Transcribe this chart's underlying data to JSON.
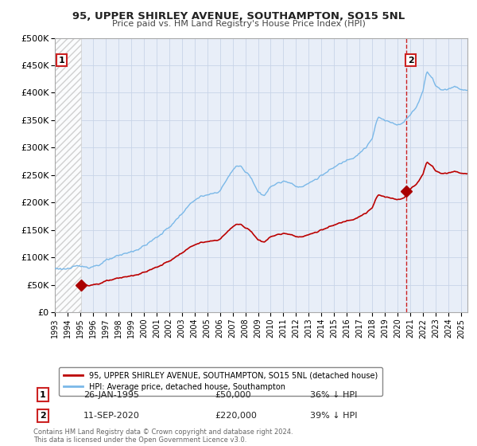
{
  "title": "95, UPPER SHIRLEY AVENUE, SOUTHAMPTON, SO15 5NL",
  "subtitle": "Price paid vs. HM Land Registry's House Price Index (HPI)",
  "ylim": [
    0,
    500000
  ],
  "yticks": [
    0,
    50000,
    100000,
    150000,
    200000,
    250000,
    300000,
    350000,
    400000,
    450000,
    500000
  ],
  "ytick_labels": [
    "£0",
    "£50K",
    "£100K",
    "£150K",
    "£200K",
    "£250K",
    "£300K",
    "£350K",
    "£400K",
    "£450K",
    "£500K"
  ],
  "xlim_start": 1993.0,
  "xlim_end": 2025.5,
  "hpi_color": "#7ab8e8",
  "price_color": "#bb0000",
  "marker_color": "#aa0000",
  "hatch_color": "#c8c8c8",
  "grid_color": "#c8d4e8",
  "sale1_x": 1995.07,
  "sale1_y": 50000,
  "sale2_x": 2020.7,
  "sale2_y": 220000,
  "vline_color": "#cc2222",
  "annotation_box_color": "#cc2222",
  "legend_label_price": "95, UPPER SHIRLEY AVENUE, SOUTHAMPTON, SO15 5NL (detached house)",
  "legend_label_hpi": "HPI: Average price, detached house, Southampton",
  "note1_label": "1",
  "note1_date": "26-JAN-1995",
  "note1_price": "£50,000",
  "note1_hpi": "36% ↓ HPI",
  "note2_label": "2",
  "note2_date": "11-SEP-2020",
  "note2_price": "£220,000",
  "note2_hpi": "39% ↓ HPI",
  "footer": "Contains HM Land Registry data © Crown copyright and database right 2024.\nThis data is licensed under the Open Government Licence v3.0.",
  "background_color": "#ffffff",
  "plot_bg_color": "#e8eef8"
}
